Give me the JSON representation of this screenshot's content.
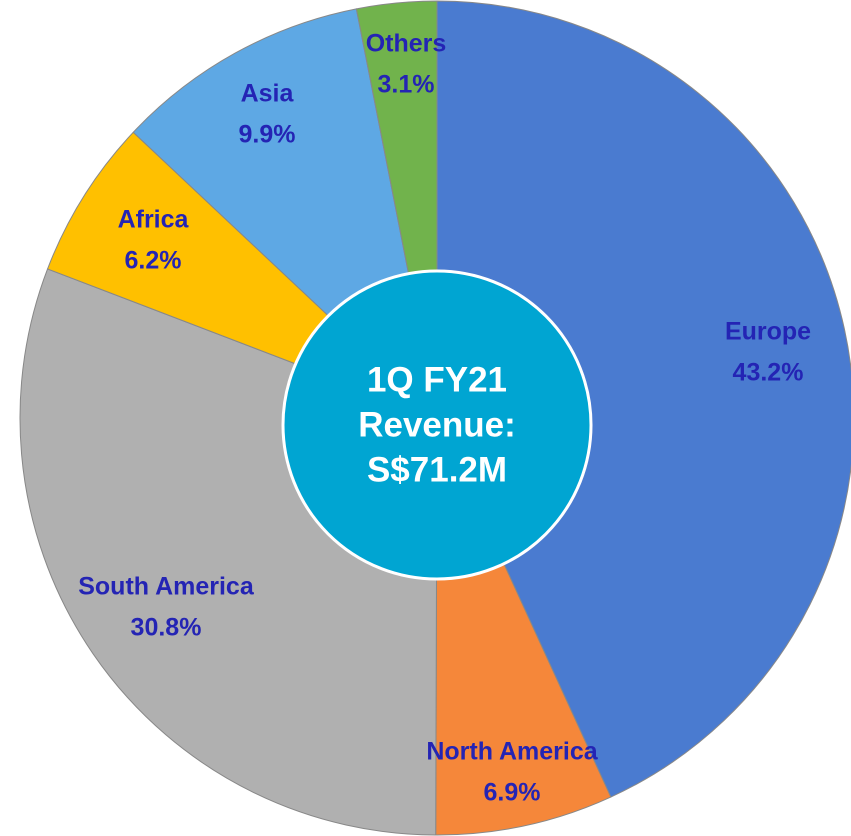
{
  "chart_data": {
    "type": "donut",
    "center_label": [
      "1Q FY21",
      "Revenue:",
      "S$71.2M"
    ],
    "categories": [
      "Europe",
      "North America",
      "South America",
      "Africa",
      "Asia",
      "Others"
    ],
    "values": [
      43.2,
      6.9,
      30.8,
      6.2,
      9.9,
      3.1
    ],
    "value_labels": [
      "43.2%",
      "6.9%",
      "30.8%",
      "6.2%",
      "9.9%",
      "3.1%"
    ],
    "colors": [
      "#4a7bd0",
      "#f5873a",
      "#b0b0b0",
      "#ffc000",
      "#5ea8e4",
      "#71b34c"
    ]
  }
}
